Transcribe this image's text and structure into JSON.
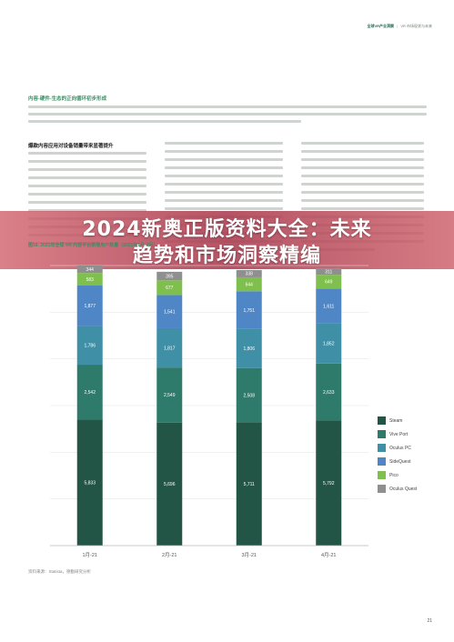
{
  "header": {
    "brand": "全球VR产业洞察",
    "sep": "|",
    "subtitle": "VR 市场现状与未来"
  },
  "overlay": {
    "line1": "2024新奥正版资料大全：未来",
    "line2": "趋势和市场洞察精编"
  },
  "section": {
    "title": "内容-硬件-生态的正向循环初步形成",
    "column_title": "爆款内容应用对设备销量带来显著提升"
  },
  "figure": {
    "caption": "图16. 2021年全球 VR 内容平台新增用户数量（2021年1月-4月）",
    "source": "资料来源：Statista，德勤研究分析"
  },
  "page_number": "21",
  "colors": {
    "Steam": "#225546",
    "Vive Port": "#2e7a6b",
    "Oculus PC": "#3f8fa6",
    "SideQuest": "#4f86c6",
    "Pico": "#7fbf4d",
    "Oculus Quest": "#8f8f8f"
  },
  "chart_data": {
    "type": "bar",
    "stacked": true,
    "categories": [
      "1月-21",
      "2月-21",
      "3月-21",
      "4月-21"
    ],
    "series": [
      {
        "name": "Steam",
        "values": [
          5833,
          5696,
          5711,
          5792
        ]
      },
      {
        "name": "Vive Port",
        "values": [
          2542,
          2549,
          2508,
          2633
        ]
      },
      {
        "name": "Oculus PC",
        "values": [
          1786,
          1817,
          1806,
          1852
        ]
      },
      {
        "name": "SideQuest",
        "values": [
          1877,
          1541,
          1751,
          1611
        ]
      },
      {
        "name": "Pico",
        "values": [
          583,
          677,
          644,
          649
        ]
      },
      {
        "name": "Oculus Quest",
        "values": [
          344,
          395,
          338,
          311
        ]
      }
    ],
    "legend_position": "right",
    "gridlines": true
  }
}
